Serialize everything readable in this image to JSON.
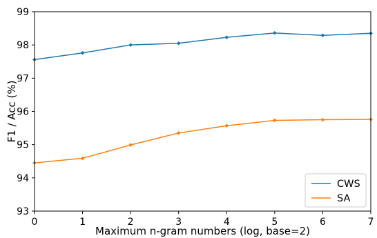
{
  "chart_data": {
    "type": "line",
    "title": "",
    "xlabel": "Maximum n-gram numbers (log, base=2)",
    "ylabel": "F1 / Acc (%)",
    "x": [
      0,
      1,
      2,
      3,
      4,
      5,
      6,
      7
    ],
    "xlim": [
      0,
      7
    ],
    "ylim": [
      93,
      99
    ],
    "xticks": [
      "0",
      "1",
      "2",
      "3",
      "4",
      "5",
      "6",
      "7"
    ],
    "yticks": [
      "93",
      "94",
      "95",
      "96",
      "97",
      "98",
      "99"
    ],
    "grid": false,
    "legend_position": "bottom-right",
    "series": [
      {
        "name": "CWS",
        "color": "#1f77b4",
        "values": [
          97.56,
          97.76,
          98.0,
          98.05,
          98.23,
          98.36,
          98.29,
          98.35
        ]
      },
      {
        "name": "SA",
        "color": "#ff7f0e",
        "values": [
          94.45,
          94.59,
          94.99,
          95.35,
          95.57,
          95.73,
          95.75,
          95.76
        ]
      }
    ]
  }
}
